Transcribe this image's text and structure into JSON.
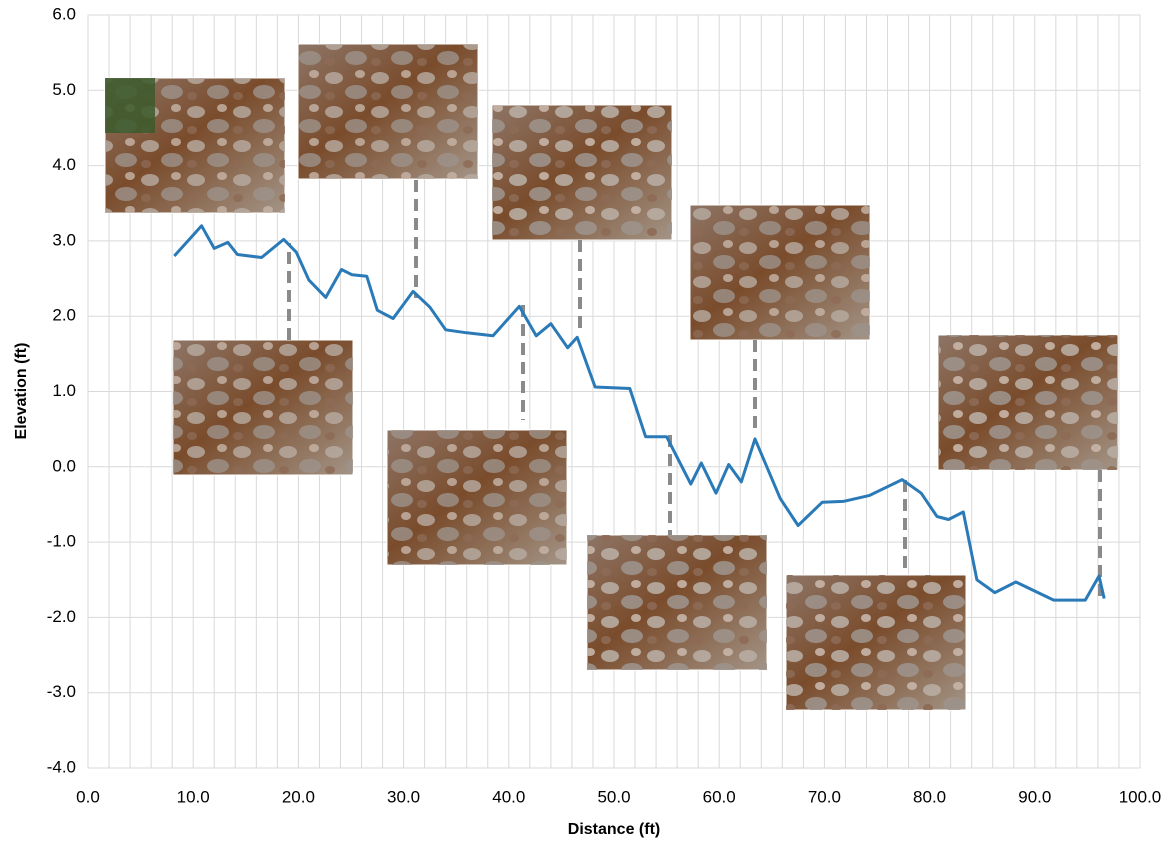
{
  "chart_data": {
    "type": "line",
    "x_label": "Distance (ft)",
    "y_label": "Elevation (ft)",
    "x": [
      8.2,
      10.8,
      12,
      13.3,
      14.2,
      16.5,
      18.6,
      19.8,
      21,
      22.6,
      24.1,
      25.1,
      26.5,
      27.5,
      29,
      30.9,
      32.5,
      34,
      36,
      38.5,
      41,
      42.6,
      44,
      45.6,
      46.5,
      48.2,
      51.5,
      53,
      55,
      57.3,
      58.3,
      59.7,
      60.9,
      62.1,
      63.4,
      65.8,
      67.5,
      69.8,
      71.8,
      74.3,
      77.4,
      79.2,
      80.7,
      81.8,
      83.2,
      84.5,
      86.2,
      88.2,
      91.8,
      94.8,
      96.1,
      96.6
    ],
    "values": [
      2.8,
      3.2,
      2.9,
      2.98,
      2.82,
      2.78,
      3.02,
      2.85,
      2.48,
      2.25,
      2.62,
      2.55,
      2.53,
      2.08,
      1.97,
      2.33,
      2.12,
      1.82,
      1.78,
      1.74,
      2.13,
      1.74,
      1.9,
      1.58,
      1.72,
      1.06,
      1.04,
      0.4,
      0.4,
      -0.23,
      0.05,
      -0.35,
      0.03,
      -0.2,
      0.37,
      -0.42,
      -0.78,
      -0.47,
      -0.46,
      -0.38,
      -0.17,
      -0.35,
      -0.66,
      -0.7,
      -0.6,
      -1.5,
      -1.67,
      -1.53,
      -1.77,
      -1.77,
      -1.45,
      -1.75
    ],
    "color": "#2a7ab8",
    "xlim": [
      0,
      100
    ],
    "ylim": [
      -4,
      6
    ],
    "xticks": [
      {
        "value": 0,
        "label": "0.0"
      },
      {
        "value": 10,
        "label": "10.0"
      },
      {
        "value": 20,
        "label": "20.0"
      },
      {
        "value": 30,
        "label": "30.0"
      },
      {
        "value": 40,
        "label": "40.0"
      },
      {
        "value": 50,
        "label": "50.0"
      },
      {
        "value": 60,
        "label": "60.0"
      },
      {
        "value": 70,
        "label": "70.0"
      },
      {
        "value": 80,
        "label": "80.0"
      },
      {
        "value": 90,
        "label": "90.0"
      },
      {
        "value": 100,
        "label": "100.0"
      }
    ],
    "xminorticks": [
      2,
      4,
      6,
      8,
      12,
      14,
      16,
      18,
      22,
      24,
      26,
      28,
      32,
      34,
      36,
      38,
      42,
      44,
      46,
      48,
      52,
      54,
      56,
      58,
      62,
      64,
      66,
      68,
      72,
      74,
      76,
      78,
      82,
      84,
      86,
      88,
      92,
      94,
      96,
      98
    ],
    "yticks": [
      {
        "value": -4,
        "label": "-4.0"
      },
      {
        "value": -3,
        "label": "-3.0"
      },
      {
        "value": -2,
        "label": "-2.0"
      },
      {
        "value": -1,
        "label": "-1.0"
      },
      {
        "value": 0,
        "label": "0.0"
      },
      {
        "value": 1,
        "label": "1.0"
      },
      {
        "value": 2,
        "label": "2.0"
      },
      {
        "value": 3,
        "label": "3.0"
      },
      {
        "value": 4,
        "label": "4.0"
      },
      {
        "value": 5,
        "label": "5.0"
      },
      {
        "value": 6,
        "label": "6.0"
      }
    ],
    "grid": true
  }
}
